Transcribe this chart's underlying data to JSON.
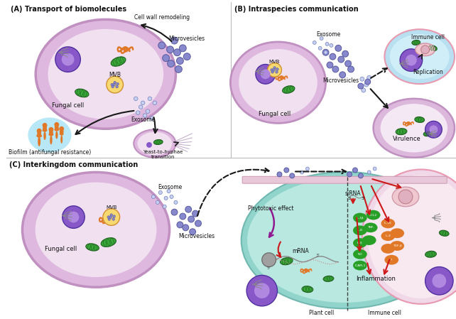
{
  "panel_A_title": "(A) Transport of biomolecules",
  "panel_B_title": "(B) Intraspecies communication",
  "panel_C_title": "(C) Interkingdom communication",
  "bg_color": "#ffffff",
  "cell_outer": "#deb8de",
  "cell_inner": "#f0e0f0",
  "cell_stroke": "#c090c0",
  "blue_cell_fill": "#b8e0f0",
  "blue_cell_stroke": "#e89ab0",
  "teal_fill": "#90d4cc",
  "teal_stroke": "#70b8b0",
  "pink_fill": "#f0d8e8",
  "pink_stroke": "#e898b0",
  "nucleus_fill": "#8858c8",
  "nucleus_light": "#b088e0",
  "mito_fill": "#38a838",
  "mito_stroke": "#206020",
  "mvb_fill": "#f8d870",
  "mvb_stroke": "#d09030",
  "vesicle_fill": "#8888cc",
  "vesicle_edge": "#5858a0",
  "exo_fill": "#c8d0f0",
  "exo_edge": "#7080c0",
  "orange_fill": "#e07828",
  "biofilm_bg": "#b8e8f8",
  "gray_fill": "#909090",
  "green_cy": "#28a028",
  "orange_cy": "#e07828",
  "arrow_col": "#181818",
  "red_col": "#cc1818",
  "purple_col": "#901890"
}
